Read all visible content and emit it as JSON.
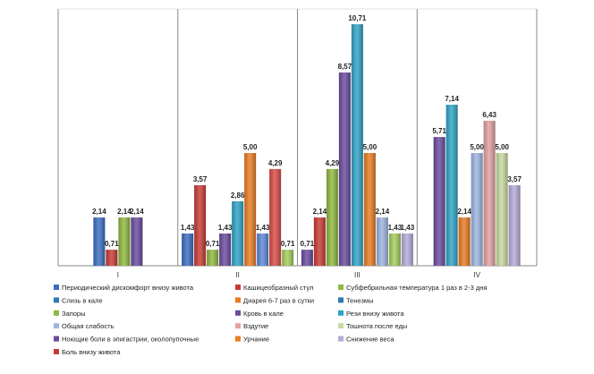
{
  "chart_data": {
    "type": "bar",
    "categories": [
      "I",
      "II",
      "III",
      "IV"
    ],
    "ylim": [
      0,
      12
    ],
    "grid": false,
    "legend_position": "bottom",
    "series": [
      {
        "name": "Периодический дискомфорт внизу живота",
        "color": "#3a6cc0",
        "values": [
          2.14,
          1.43,
          null,
          null
        ],
        "labels": [
          "2,14",
          "1,43",
          "",
          ""
        ]
      },
      {
        "name": "Кашицеобразный стул",
        "color": "#c83a34",
        "values": [
          0.71,
          3.57,
          2.14,
          null
        ],
        "labels": [
          "0,71",
          "3,57",
          "2,14",
          ""
        ]
      },
      {
        "name": "Субфебрильная температура 1 раз в 2-3 дня",
        "color": "#8fb83f",
        "values": [
          2.14,
          0.71,
          4.29,
          null
        ],
        "labels": [
          "2,14",
          "0,71",
          "4,29",
          ""
        ]
      },
      {
        "name": "Слизь в кале",
        "color": "#6a4a9e",
        "values": [
          2.14,
          1.43,
          0.71,
          5.71
        ],
        "labels": [
          "2,14",
          "1,43",
          "0,71",
          "5,71"
        ]
      },
      {
        "name": "Диарея 6-7 раз в сутки",
        "color": "#2fa3c4",
        "values": [
          null,
          2.86,
          8.57,
          7.14
        ],
        "labels": [
          "",
          "2,86",
          "8,57",
          "7,14"
        ]
      },
      {
        "name": "Тенезмы",
        "color": "#e87c22",
        "values": [
          null,
          5.0,
          null,
          2.14
        ],
        "labels": [
          "",
          "5,00",
          "",
          "2,14"
        ]
      },
      {
        "name": "Запоры",
        "color": "#5b87d8",
        "values": [
          null,
          1.43,
          10.71,
          5.0
        ],
        "labels": [
          "",
          "1,43",
          "10,71",
          "5,00"
        ]
      },
      {
        "name": "Кровь в кале",
        "color": "#d84a44",
        "values": [
          null,
          4.29,
          5.0,
          6.43
        ],
        "labels": [
          "",
          "4,29",
          "5,00",
          "6,43"
        ]
      },
      {
        "name": "Рези внизу живота",
        "color": "#a4cd5c",
        "values": [
          null,
          0.71,
          2.14,
          5.0
        ],
        "labels": [
          "",
          "0,71",
          "2,14",
          "5,00"
        ]
      },
      {
        "name": "Общая слабость",
        "color": "#9d86c6",
        "values": [
          null,
          null,
          1.43,
          3.57
        ],
        "labels": [
          "",
          "",
          "1,43",
          "3,57"
        ]
      }
    ]
  },
  "legend": [
    {
      "label": "Периодический дискомфорт внизу живота",
      "color": "#3a6cc0"
    },
    {
      "label": "Кашицеобразный стул",
      "color": "#c83a34"
    },
    {
      "label": "Субфебрильная температура 1 раз в 2-3 дня",
      "color": "#8fb83f"
    },
    {
      "label": "Слизь в кале",
      "color": "#2f78b8"
    },
    {
      "label": "Диарея 6-7 раз в сутки",
      "color": "#e87c22"
    },
    {
      "label": "Тенезмы",
      "color": "#2f78b8"
    },
    {
      "label": "Запоры",
      "color": "#8fb83f"
    },
    {
      "label": "Кровь в кале",
      "color": "#6a4a9e"
    },
    {
      "label": "Рези внизу живота",
      "color": "#2fa3c4"
    },
    {
      "label": "Общая слабость",
      "color": "#9db3e0"
    },
    {
      "label": "Вздутие",
      "color": "#e2a0a0"
    },
    {
      "label": "Тошнота после еды",
      "color": "#c5d9a0"
    },
    {
      "label": "Ноющие боли в эпигастрии, околопупочные",
      "color": "#6a4a9e"
    },
    {
      "label": "Урчание",
      "color": "#e87c22"
    },
    {
      "label": "Снижение веса",
      "color": "#b7abd8"
    },
    {
      "label": "Боль внизу живота",
      "color": "#c83a34"
    }
  ],
  "groups": [
    {
      "category": "I",
      "bars": [
        {
          "value": 2.14,
          "label": "2,14",
          "color": "#3a6cc0"
        },
        {
          "value": 0.71,
          "label": "0,71",
          "color": "#c83a34"
        },
        {
          "value": 2.14,
          "label": "2,14",
          "color": "#8fb83f"
        },
        {
          "value": 2.14,
          "label": "2,14",
          "color": "#6a4a9e"
        }
      ]
    },
    {
      "category": "II",
      "bars": [
        {
          "value": 1.43,
          "label": "1,43",
          "color": "#3a6cc0"
        },
        {
          "value": 3.57,
          "label": "3,57",
          "color": "#c83a34"
        },
        {
          "value": 0.71,
          "label": "0,71",
          "color": "#8fb83f"
        },
        {
          "value": 1.43,
          "label": "1,43",
          "color": "#6a4a9e"
        },
        {
          "value": 2.86,
          "label": "2,86",
          "color": "#2fa3c4"
        },
        {
          "value": 5.0,
          "label": "5,00",
          "color": "#e87c22"
        },
        {
          "value": 1.43,
          "label": "1,43",
          "color": "#5b87d8"
        },
        {
          "value": 4.29,
          "label": "4,29",
          "color": "#d84a44"
        },
        {
          "value": 0.71,
          "label": "0,71",
          "color": "#a4cd5c"
        }
      ]
    },
    {
      "category": "III",
      "bars": [
        {
          "value": 0.71,
          "label": "0,71",
          "color": "#6a4a9e"
        },
        {
          "value": 2.14,
          "label": "2,14",
          "color": "#c83a34"
        },
        {
          "value": 4.29,
          "label": "4,29",
          "color": "#8fb83f"
        },
        {
          "value": 8.57,
          "label": "8,57",
          "color": "#6a4a9e"
        },
        {
          "value": 10.71,
          "label": "10,71",
          "color": "#2fa3c4"
        },
        {
          "value": 5.0,
          "label": "5,00",
          "color": "#e87c22"
        },
        {
          "value": 2.14,
          "label": "2,14",
          "color": "#9db3e0"
        },
        {
          "value": 1.43,
          "label": "1,43",
          "color": "#a4cd5c"
        },
        {
          "value": 1.43,
          "label": "1,43",
          "color": "#b7abd8"
        }
      ]
    },
    {
      "category": "IV",
      "bars": [
        {
          "value": 5.71,
          "label": "5,71",
          "color": "#6a4a9e"
        },
        {
          "value": 7.14,
          "label": "7,14",
          "color": "#2fa3c4"
        },
        {
          "value": 2.14,
          "label": "2,14",
          "color": "#e87c22"
        },
        {
          "value": 5.0,
          "label": "5,00",
          "color": "#9db3e0"
        },
        {
          "value": 6.43,
          "label": "6,43",
          "color": "#e2a0a0"
        },
        {
          "value": 5.0,
          "label": "5,00",
          "color": "#c5d9a0"
        },
        {
          "value": 3.57,
          "label": "3,57",
          "color": "#b7abd8"
        }
      ]
    }
  ]
}
